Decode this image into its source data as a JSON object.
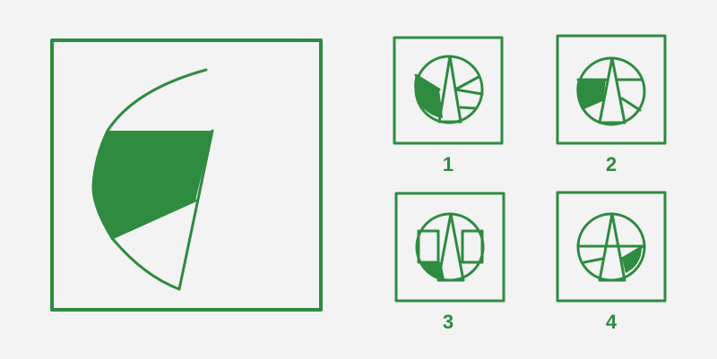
{
  "colors": {
    "green": "#2e8b40",
    "background": "#f3f3f3"
  },
  "options": [
    {
      "label": "1"
    },
    {
      "label": "2"
    },
    {
      "label": "3"
    },
    {
      "label": "4"
    }
  ]
}
